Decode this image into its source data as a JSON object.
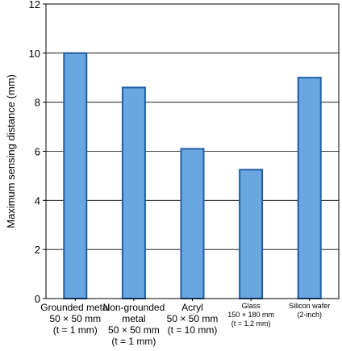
{
  "chart_data": {
    "type": "bar",
    "title": "",
    "xlabel": "",
    "ylabel": "Maximum sensing distance (mm)",
    "ylim": [
      0,
      12
    ],
    "yticks": [
      "0",
      "2",
      "4",
      "6",
      "8",
      "10",
      "12"
    ],
    "grid": true,
    "categories": [
      {
        "lines": [
          "Grounded metal",
          "50 × 50 mm",
          "(t = 1 mm)"
        ],
        "size": "large"
      },
      {
        "lines": [
          "Non-grounded",
          "metal",
          "50 × 50 mm",
          "(t = 1 mm)"
        ],
        "size": "large"
      },
      {
        "lines": [
          "Acryl",
          "50 × 50 mm",
          "(t = 10 mm)"
        ],
        "size": "large"
      },
      {
        "lines": [
          "Glass",
          "150 × 180 mm",
          "(t = 1.2 mm)"
        ],
        "size": "small"
      },
      {
        "lines": [
          "Silicon wafer",
          "(2-inch)"
        ],
        "size": "small"
      }
    ],
    "values": [
      10.0,
      8.6,
      6.1,
      5.25,
      9.0
    ],
    "colors": {
      "bar_fill": "#6aa6e0",
      "bar_stroke": "#1f5fa8",
      "grid": "#000000",
      "axis": "#000000"
    }
  }
}
